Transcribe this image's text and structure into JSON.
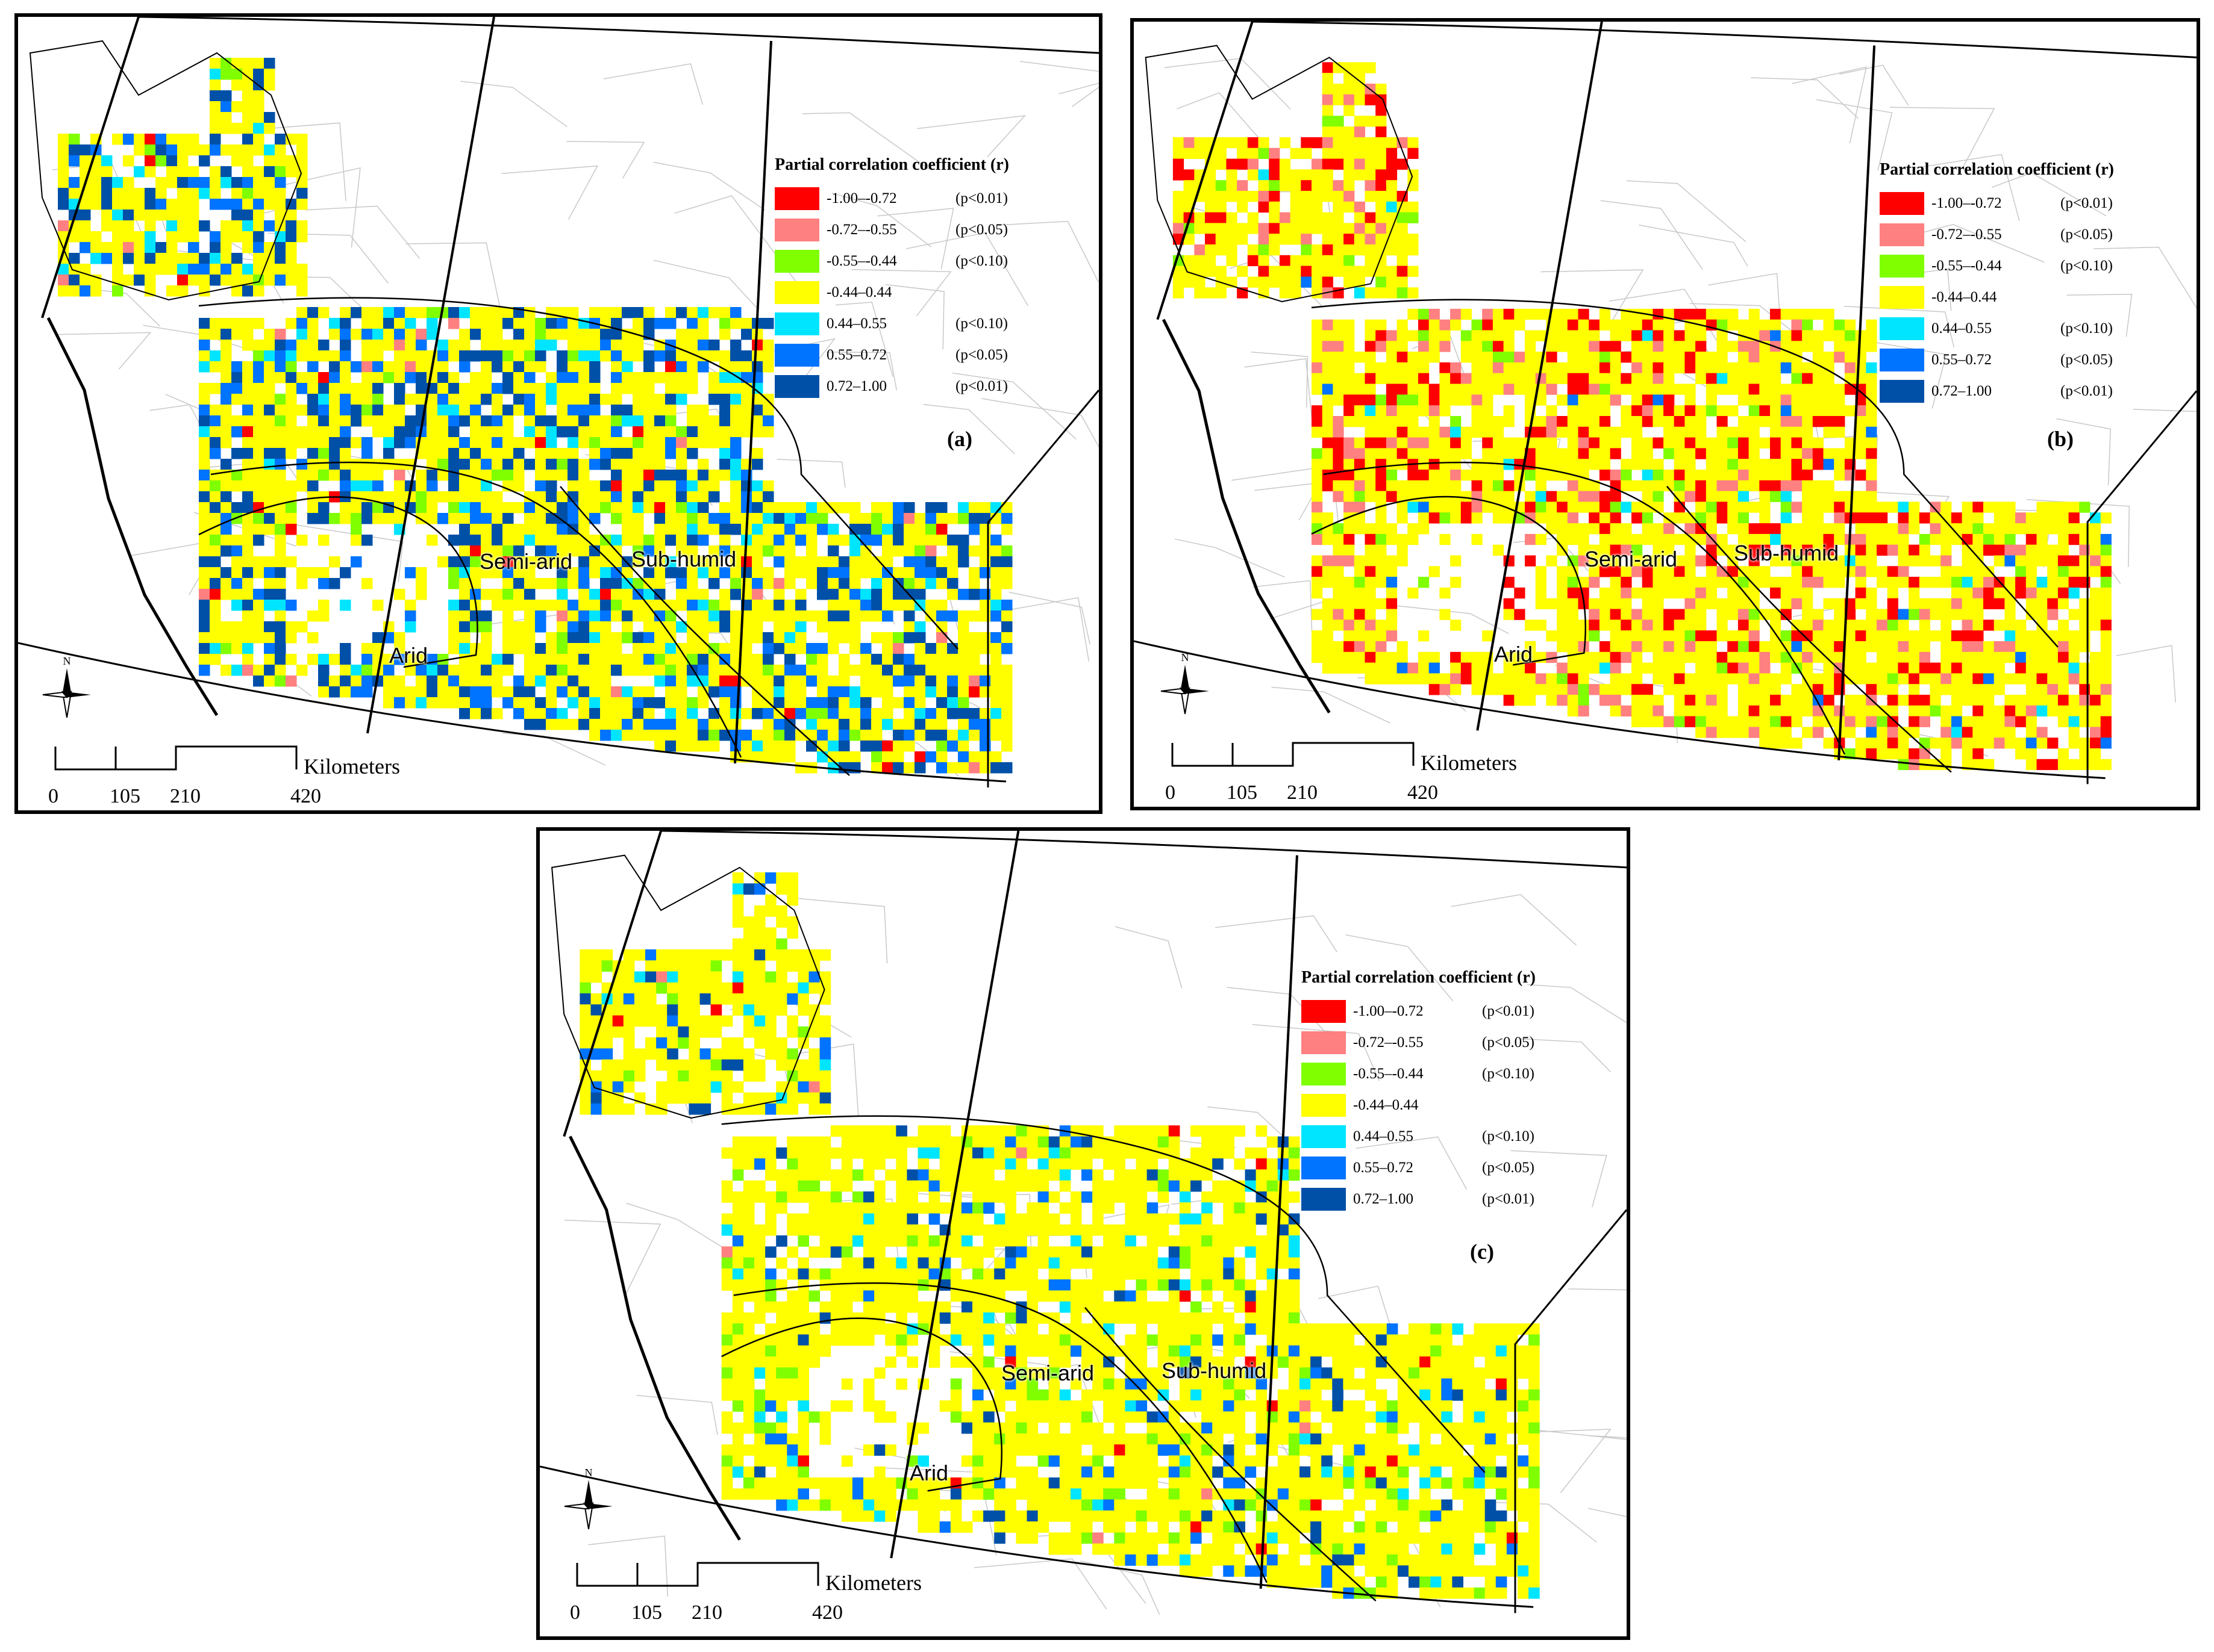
{
  "legend": {
    "title": "Partial correlation coefficient (r)",
    "classes": [
      {
        "range": "-1.00–-0.72",
        "sig": "(p<0.01)",
        "color": "#ff0000"
      },
      {
        "range": "-0.72–-0.55",
        "sig": "(p<0.05)",
        "color": "#ff8080"
      },
      {
        "range": "-0.55–-0.44",
        "sig": "(p<0.10)",
        "color": "#7fff00"
      },
      {
        "range": "-0.44–0.44",
        "sig": "",
        "color": "#ffff00"
      },
      {
        "range": "0.44–0.55",
        "sig": "(p<0.10)",
        "color": "#00e5ff"
      },
      {
        "range": "0.55–0.72",
        "sig": "(p<0.05)",
        "color": "#0073ff"
      },
      {
        "range": "0.72–1.00",
        "sig": "(p<0.01)",
        "color": "#0050a8"
      }
    ]
  },
  "zones": {
    "arid": "Arid",
    "semi_arid": "Semi-arid",
    "sub_humid": "Sub-humid"
  },
  "north_label": "N",
  "scale": {
    "ticks": [
      "0",
      "105",
      "210",
      "420"
    ],
    "unit": "Kilometers"
  },
  "panels": [
    {
      "id": "a",
      "label": "(a)",
      "weights": [
        1,
        1,
        4,
        60,
        6,
        12,
        16
      ]
    },
    {
      "id": "b",
      "label": "(b)",
      "weights": [
        14,
        10,
        4,
        70,
        1,
        1,
        0
      ]
    },
    {
      "id": "c",
      "label": "(c)",
      "weights": [
        1,
        1,
        6,
        80,
        4,
        4,
        4
      ]
    }
  ]
}
